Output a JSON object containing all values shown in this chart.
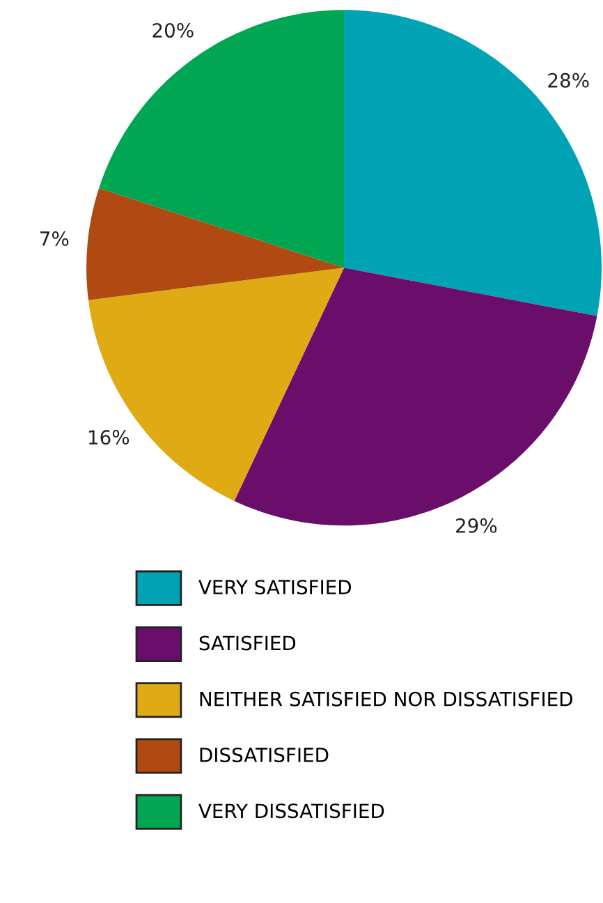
{
  "chart_data": {
    "type": "pie",
    "categories": [
      "VERY SATISFIED",
      "SATISFIED",
      "NEITHER SATISFIED NOR DISSATISFIED",
      "DISSATISFIED",
      "VERY DISSATISFIED"
    ],
    "values": [
      28,
      29,
      16,
      7,
      20
    ],
    "colors": [
      "#00a3b4",
      "#6b0d6b",
      "#e0aa14",
      "#b04a12",
      "#00a651"
    ],
    "value_labels": [
      "28%",
      "29%",
      "16%",
      "7%",
      "20%"
    ],
    "legend": "bottom"
  }
}
